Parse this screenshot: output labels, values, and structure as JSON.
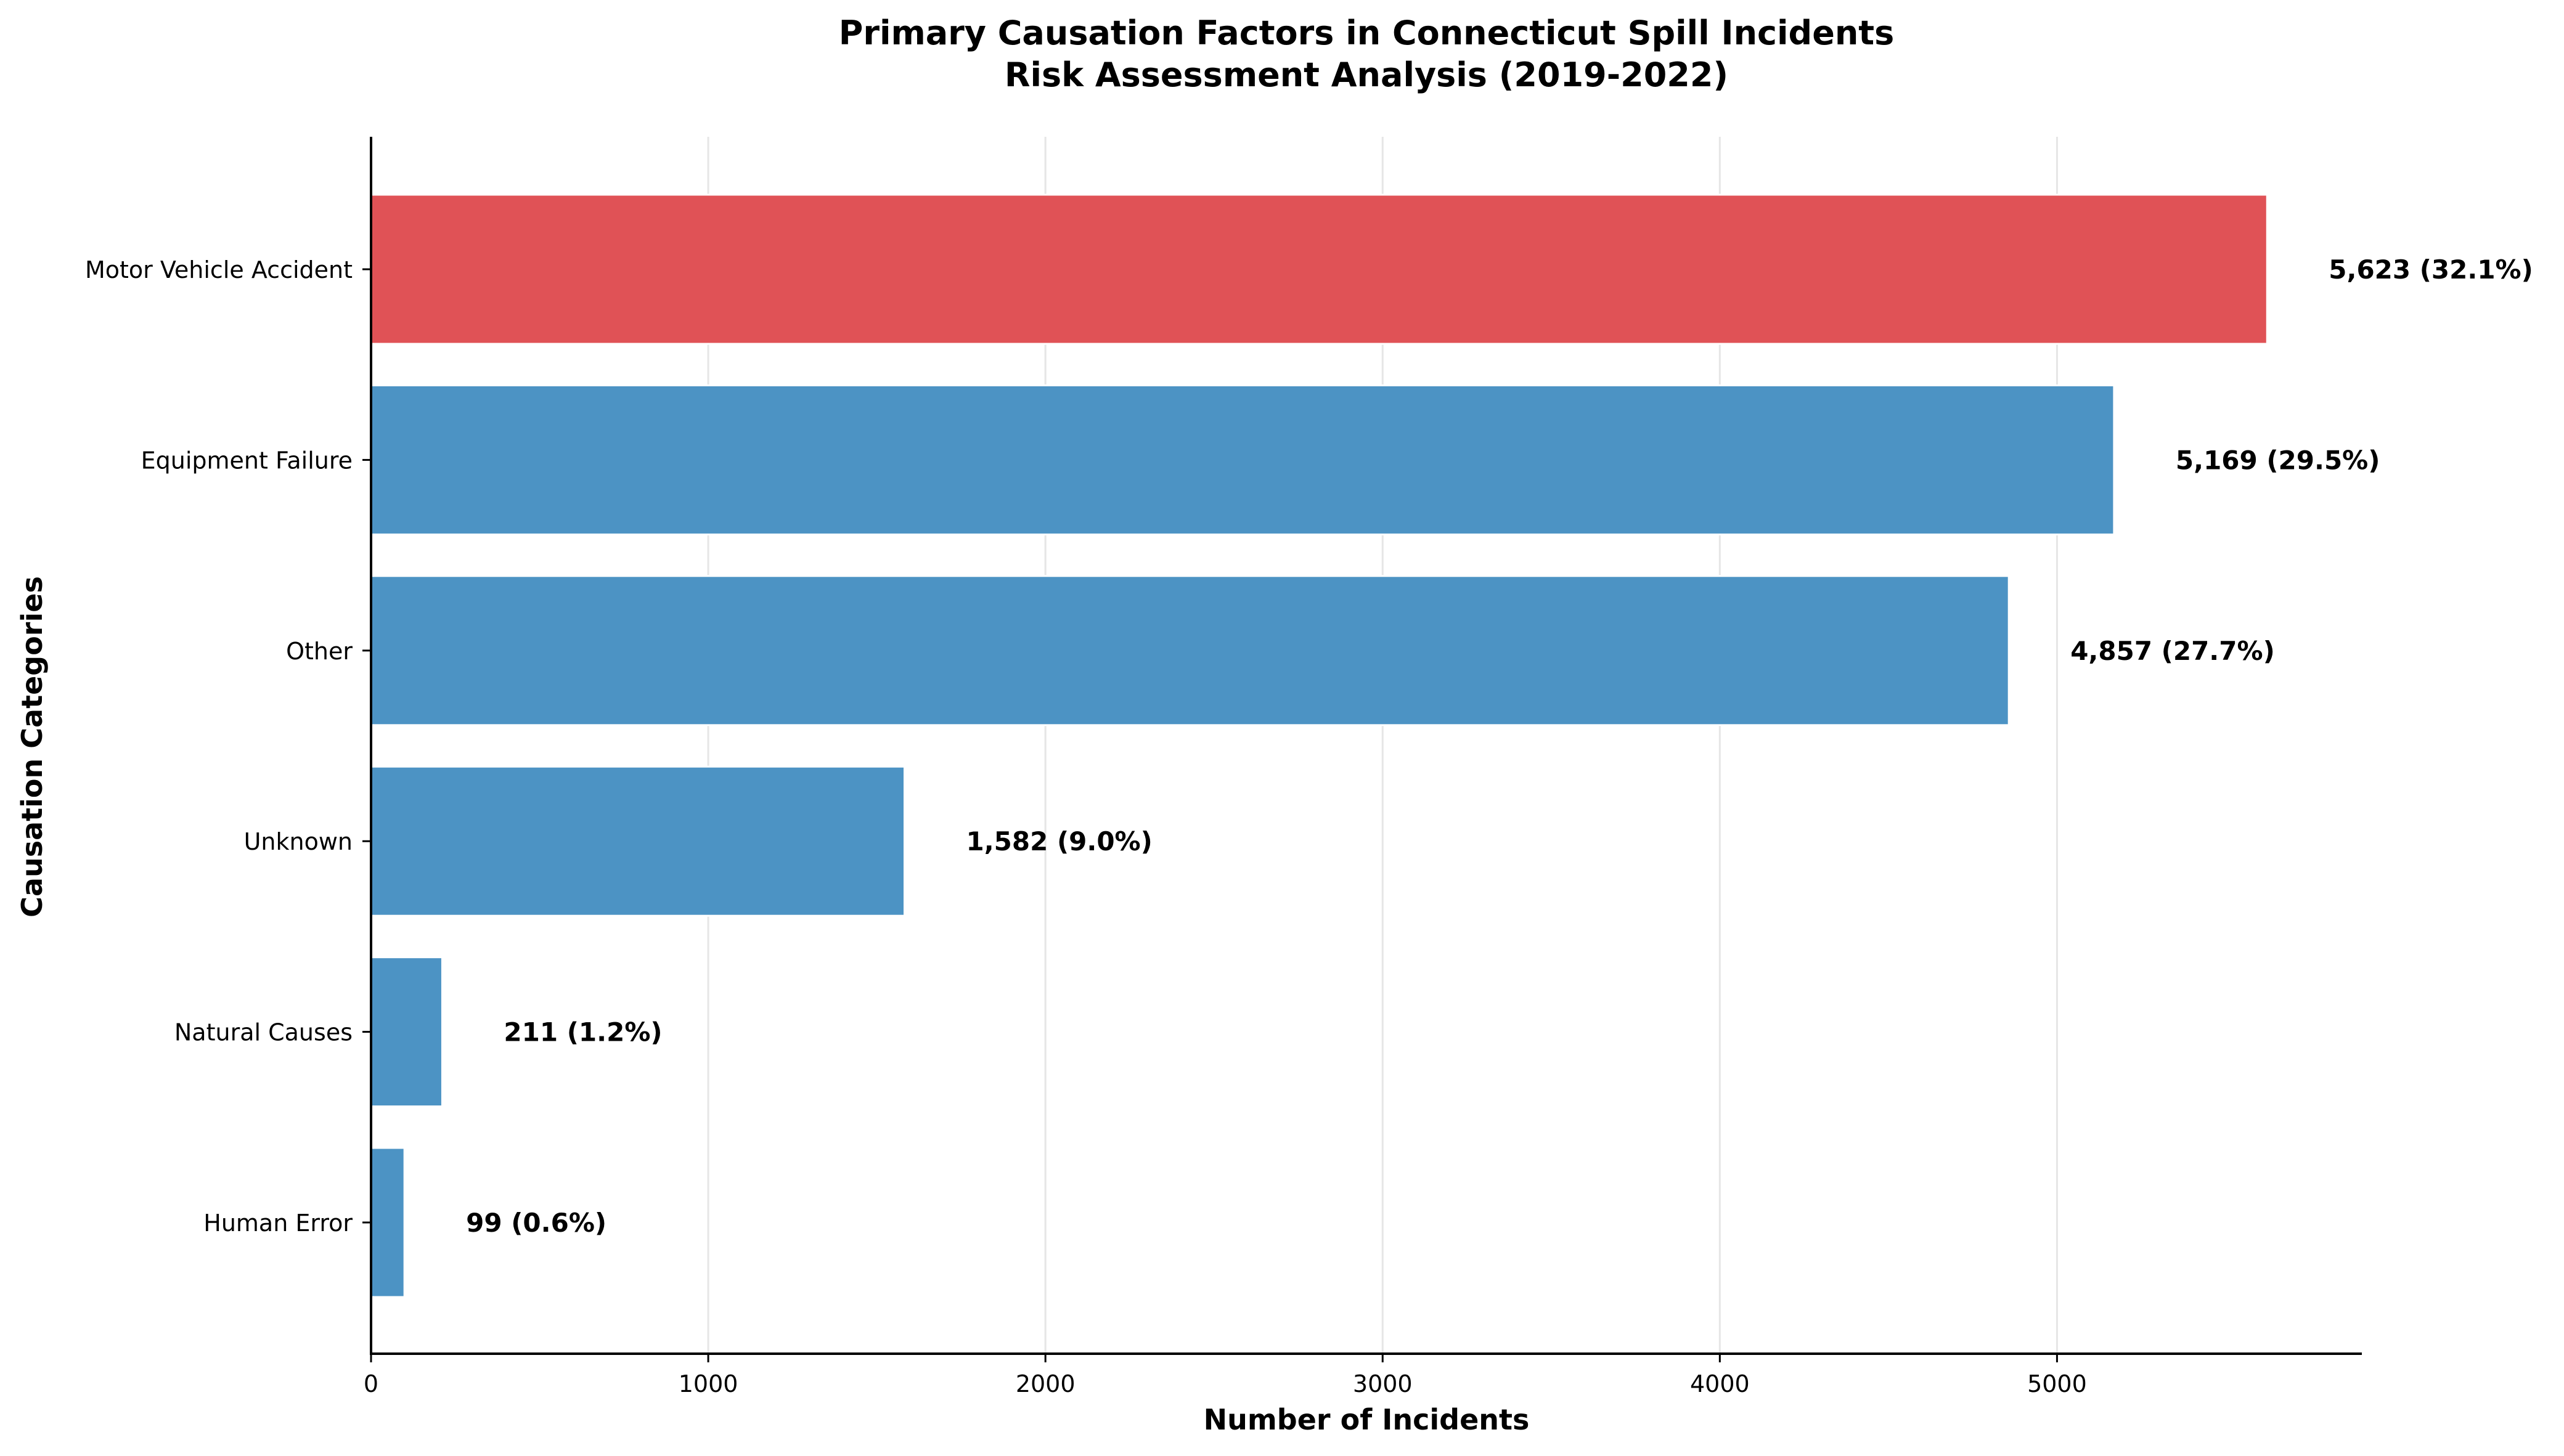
{
  "chart_data": {
    "type": "bar",
    "orientation": "horizontal",
    "title": "Primary Causation Factors in Connecticut Spill Incidents",
    "subtitle": "Risk Assessment Analysis (2019-2022)",
    "xlabel": "Number of Incidents",
    "ylabel": "Causation Categories",
    "categories": [
      "Motor Vehicle Accident",
      "Equipment Failure",
      "Other",
      "Unknown",
      "Natural Causes",
      "Human Error"
    ],
    "values": [
      5623,
      5169,
      4857,
      1582,
      211,
      99
    ],
    "value_labels": [
      "5,623 (32.1%)",
      "5,169 (29.5%)",
      "4,857 (27.7%)",
      "1,582 (9.0%)",
      "211 (1.2%)",
      "99 (0.6%)"
    ],
    "highlight_index": 0,
    "colors": {
      "highlight": "#E05256",
      "default": "#4C93C4",
      "grid": "#e6e6e6",
      "axis": "#000000"
    },
    "xlim": [
      0,
      5904
    ],
    "xticks": [
      0,
      1000,
      2000,
      3000,
      4000,
      5000
    ],
    "grid": "x",
    "legend": "none"
  }
}
